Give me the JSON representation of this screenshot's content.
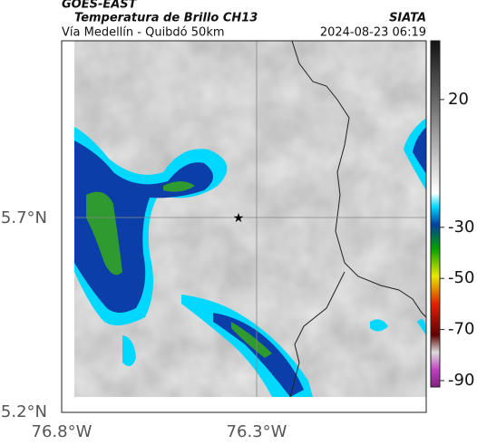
{
  "header": {
    "agency": "GOES-EAST",
    "title": "Temperatura de Brillo CH13",
    "subtitle": "Vía Medellín - Quibdó 50km",
    "source": "SIATA",
    "timestamp": "2024-08-23 06:19"
  },
  "map": {
    "lat_ticks": [
      "5.7°N",
      "5.2°N"
    ],
    "lon_ticks": [
      "76.8°W",
      "76.3°W"
    ]
  },
  "colorbar": {
    "lim": [
      -92.5,
      43
    ],
    "ticks": [
      20,
      -30,
      -50,
      -70,
      -90
    ]
  }
}
